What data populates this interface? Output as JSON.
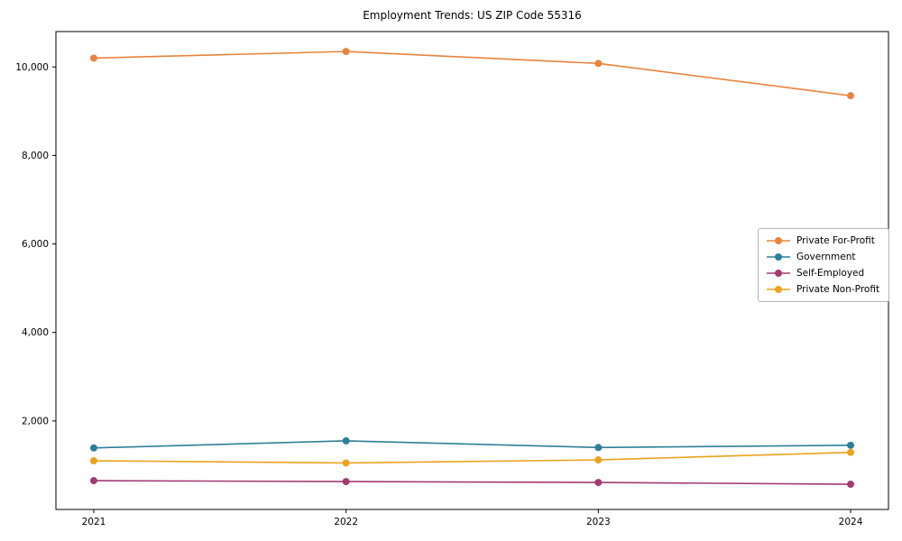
{
  "title": "Employment Trends: US ZIP Code 55316",
  "chart_data": {
    "type": "line",
    "title": "Employment Trends: US ZIP Code 55316",
    "xlabel": "",
    "ylabel": "",
    "x": [
      "2021",
      "2022",
      "2023",
      "2024"
    ],
    "series": [
      {
        "name": "Private For-Profit",
        "color": "#e8833c",
        "values": [
          10200,
          10350,
          10080,
          9350
        ]
      },
      {
        "name": "Government",
        "color": "#2e7f99",
        "values": [
          1390,
          1550,
          1400,
          1450
        ]
      },
      {
        "name": "Self-Employed",
        "color": "#a23b72",
        "values": [
          650,
          630,
          610,
          570
        ]
      },
      {
        "name": "Private Non-Profit",
        "color": "#eba21f",
        "values": [
          1100,
          1050,
          1120,
          1290
        ]
      }
    ],
    "ylim": [
      0,
      10800
    ],
    "yticks": [
      2000,
      4000,
      6000,
      8000,
      10000
    ],
    "ytick_labels": [
      "2,000",
      "4,000",
      "6,000",
      "8,000",
      "10,000"
    ],
    "grid": false,
    "legend_position": "center right",
    "marker": "o",
    "frame": "box"
  }
}
